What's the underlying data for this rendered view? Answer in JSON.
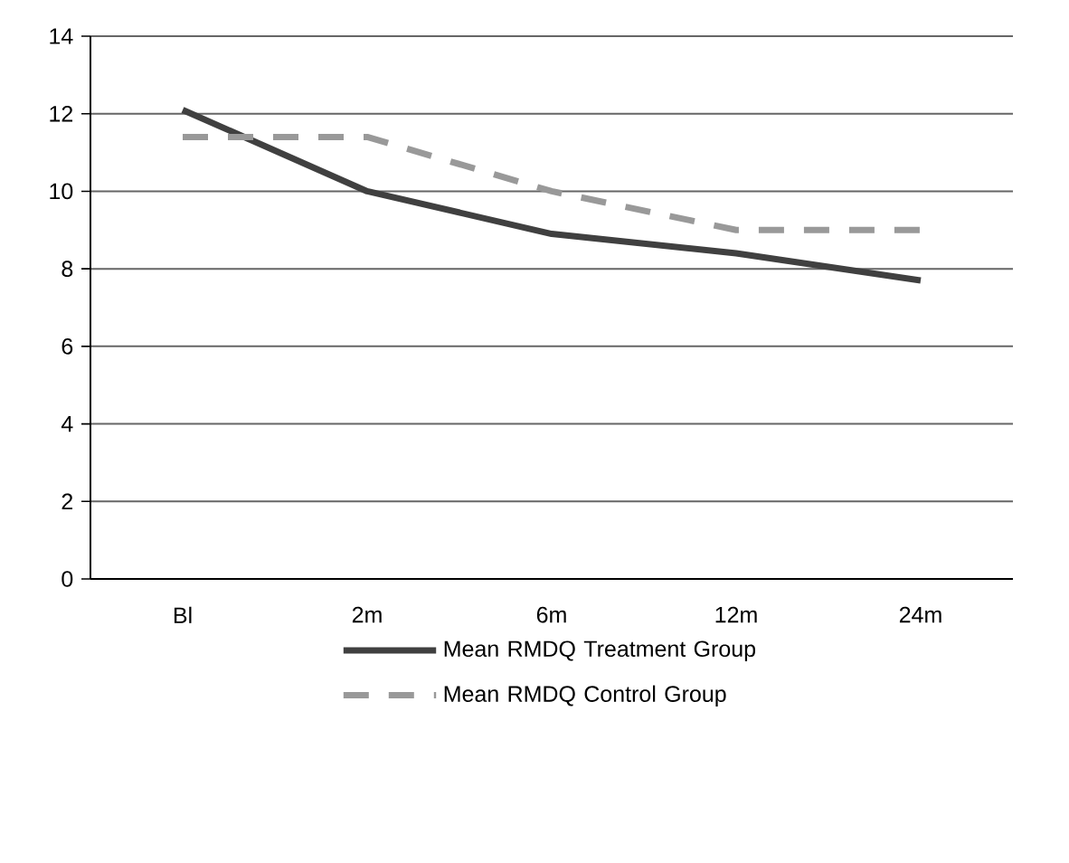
{
  "chart_data": {
    "type": "line",
    "categories": [
      "Bl",
      "2m",
      "6m",
      "12m",
      "24m"
    ],
    "series": [
      {
        "name": "Mean RMDQ Treatment Group",
        "color": "#404040",
        "line_style": "solid",
        "values": [
          12.1,
          10.0,
          8.9,
          8.4,
          7.7
        ]
      },
      {
        "name": "Mean RMDQ Control Group",
        "color": "#999999",
        "line_style": "dashed",
        "values": [
          11.4,
          11.4,
          10.0,
          9.0,
          9.0
        ]
      }
    ],
    "ylim": [
      0,
      14
    ],
    "yticks": [
      0,
      2,
      4,
      6,
      8,
      10,
      12,
      14
    ],
    "grid": "y",
    "legend": "bottom",
    "marker": "none"
  }
}
